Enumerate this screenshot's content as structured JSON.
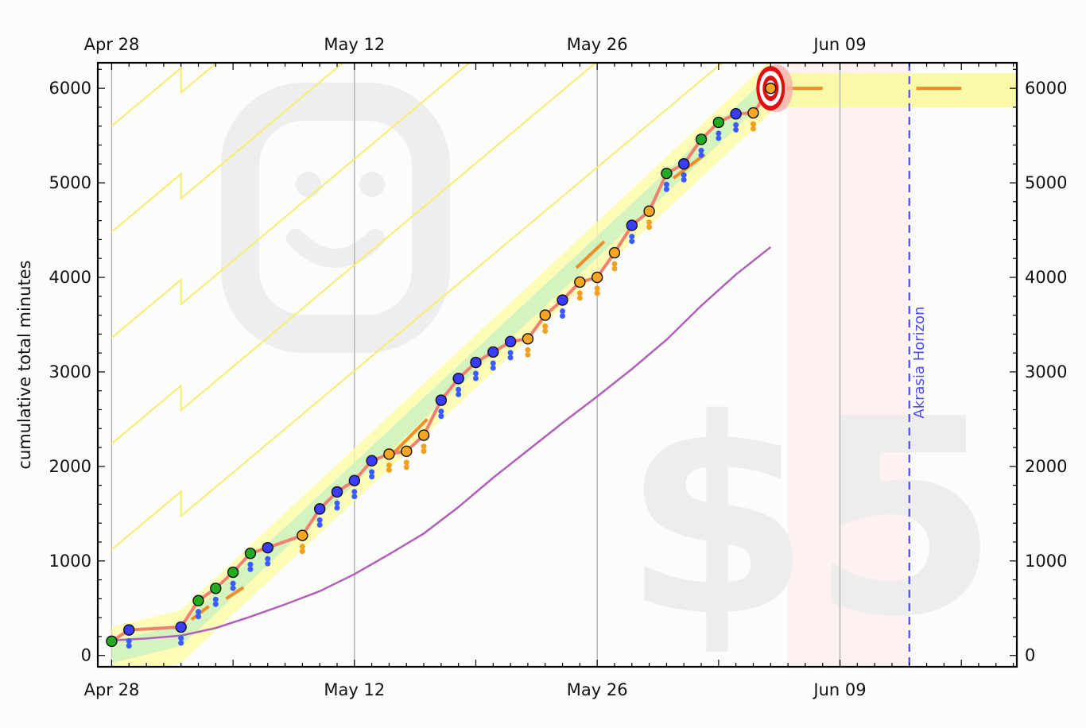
{
  "chart_data": {
    "type": "line",
    "ylabel": "cumulative total minutes",
    "x_tick_labels": [
      "Apr 28",
      "May 12",
      "May 26",
      "Jun 09"
    ],
    "x_ticks_day": [
      0,
      14,
      28,
      42
    ],
    "y_ticks": [
      0,
      1000,
      2000,
      3000,
      4000,
      5000,
      6000
    ],
    "xlim_day": [
      -0.8,
      52.2
    ],
    "ylim": [
      -120,
      6270
    ],
    "grid": "vertical at major date ticks",
    "watermark_amount": "$5",
    "akrasia_label": "Akrasia Horizon",
    "akrasia_day": 46,
    "goal": {
      "day": 38,
      "value": 6000,
      "flat_until_day": 49
    },
    "future_band": {
      "from_day": 39,
      "to_day": 46
    },
    "colors": {
      "datapoint_line": "#f08070",
      "purple_trend": "#b060b8",
      "yellow_lines": "#f4ee70",
      "akrasia": "#4b4bff",
      "target": "#e01010",
      "orange_dash": "#f28c28"
    },
    "points": [
      {
        "day": 0,
        "value": 150,
        "color": "green"
      },
      {
        "day": 1,
        "value": 270,
        "color": "blue"
      },
      {
        "day": 4,
        "value": 300,
        "color": "blue"
      },
      {
        "day": 5,
        "value": 580,
        "color": "green"
      },
      {
        "day": 6,
        "value": 710,
        "color": "green"
      },
      {
        "day": 7,
        "value": 880,
        "color": "green"
      },
      {
        "day": 8,
        "value": 1080,
        "color": "green"
      },
      {
        "day": 9,
        "value": 1140,
        "color": "blue"
      },
      {
        "day": 11,
        "value": 1270,
        "color": "orange"
      },
      {
        "day": 12,
        "value": 1550,
        "color": "blue"
      },
      {
        "day": 13,
        "value": 1730,
        "color": "blue"
      },
      {
        "day": 14,
        "value": 1850,
        "color": "blue"
      },
      {
        "day": 15,
        "value": 2060,
        "color": "blue"
      },
      {
        "day": 16,
        "value": 2130,
        "color": "orange"
      },
      {
        "day": 17,
        "value": 2160,
        "color": "orange"
      },
      {
        "day": 18,
        "value": 2330,
        "color": "orange"
      },
      {
        "day": 19,
        "value": 2700,
        "color": "blue"
      },
      {
        "day": 20,
        "value": 2930,
        "color": "blue"
      },
      {
        "day": 21,
        "value": 3100,
        "color": "blue"
      },
      {
        "day": 22,
        "value": 3210,
        "color": "blue"
      },
      {
        "day": 23,
        "value": 3320,
        "color": "blue"
      },
      {
        "day": 24,
        "value": 3350,
        "color": "orange"
      },
      {
        "day": 25,
        "value": 3600,
        "color": "orange"
      },
      {
        "day": 26,
        "value": 3760,
        "color": "blue"
      },
      {
        "day": 27,
        "value": 3950,
        "color": "orange"
      },
      {
        "day": 28,
        "value": 4000,
        "color": "orange"
      },
      {
        "day": 29,
        "value": 4260,
        "color": "orange"
      },
      {
        "day": 30,
        "value": 4550,
        "color": "blue"
      },
      {
        "day": 31,
        "value": 4700,
        "color": "orange"
      },
      {
        "day": 32,
        "value": 5100,
        "color": "green"
      },
      {
        "day": 33,
        "value": 5200,
        "color": "blue"
      },
      {
        "day": 34,
        "value": 5460,
        "color": "green"
      },
      {
        "day": 35,
        "value": 5640,
        "color": "green"
      },
      {
        "day": 36,
        "value": 5730,
        "color": "blue"
      },
      {
        "day": 37,
        "value": 5740,
        "color": "orange"
      },
      {
        "day": 38,
        "value": 6000,
        "color": "orange"
      }
    ],
    "trend": [
      [
        0,
        160
      ],
      [
        2,
        180
      ],
      [
        4,
        210
      ],
      [
        6,
        290
      ],
      [
        8,
        410
      ],
      [
        10,
        540
      ],
      [
        12,
        680
      ],
      [
        14,
        860
      ],
      [
        16,
        1070
      ],
      [
        18,
        1290
      ],
      [
        20,
        1570
      ],
      [
        22,
        1880
      ],
      [
        24,
        2170
      ],
      [
        26,
        2460
      ],
      [
        28,
        2740
      ],
      [
        30,
        3030
      ],
      [
        32,
        3340
      ],
      [
        34,
        3700
      ],
      [
        36,
        4030
      ],
      [
        38,
        4320
      ]
    ]
  }
}
